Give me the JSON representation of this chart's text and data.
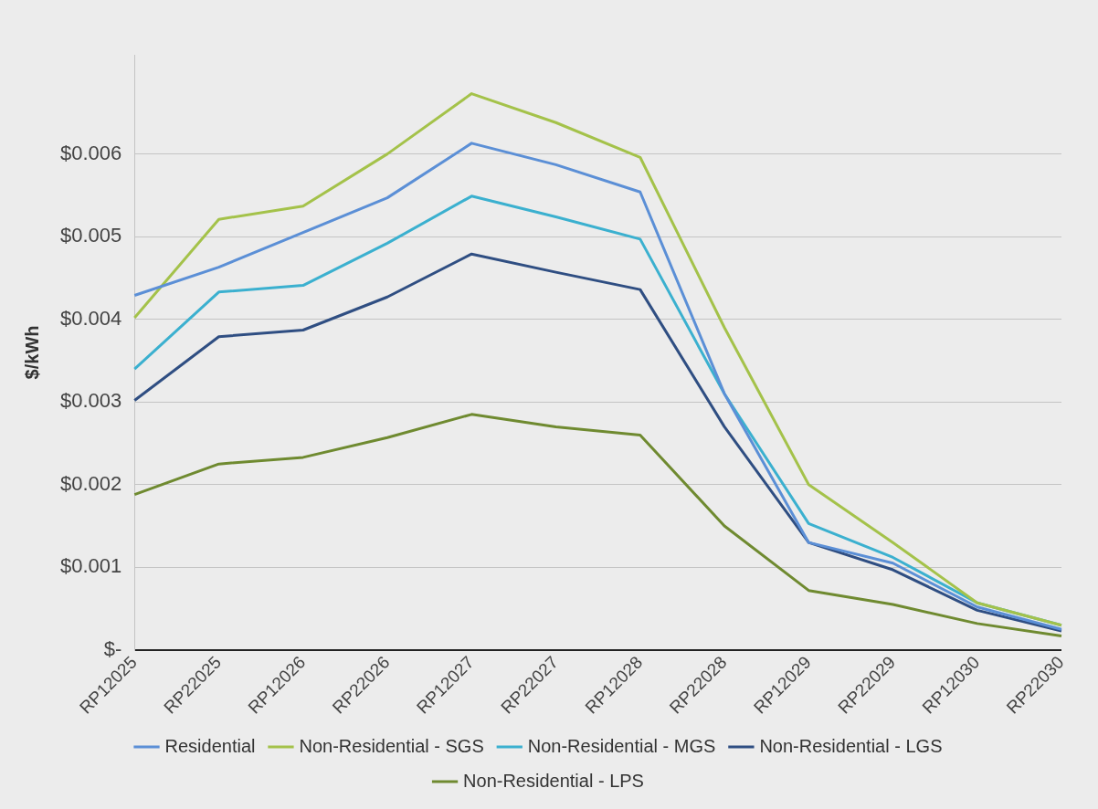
{
  "chart_data": {
    "type": "line",
    "ylabel": "$/kWh",
    "categories": [
      "RP12025",
      "RP22025",
      "RP12026",
      "RP22026",
      "RP12027",
      "RP22027",
      "RP12028",
      "RP22028",
      "RP12029",
      "RP22029",
      "RP12030",
      "RP22030"
    ],
    "series": [
      {
        "name": "Residential",
        "color": "#5b8fd6",
        "values": [
          0.00429,
          0.00463,
          0.00505,
          0.00547,
          0.00613,
          0.00587,
          0.00554,
          0.0031,
          0.0013,
          0.00105,
          0.00052,
          0.00025
        ]
      },
      {
        "name": "Non-Residential - SGS",
        "color": "#a4c24a",
        "values": [
          0.00402,
          0.00521,
          0.00537,
          0.006,
          0.00673,
          0.00638,
          0.00596,
          0.0039,
          0.002,
          0.0013,
          0.00057,
          0.0003
        ]
      },
      {
        "name": "Non-Residential - MGS",
        "color": "#3bb0cf",
        "values": [
          0.0034,
          0.00433,
          0.00441,
          0.00492,
          0.00549,
          0.00524,
          0.00497,
          0.0031,
          0.00153,
          0.00112,
          0.00057,
          0.0003
        ]
      },
      {
        "name": "Non-Residential - LGS",
        "color": "#2f4e82",
        "values": [
          0.00302,
          0.00379,
          0.00387,
          0.00427,
          0.00479,
          0.00457,
          0.00436,
          0.0027,
          0.0013,
          0.00097,
          0.00048,
          0.00023
        ]
      },
      {
        "name": "Non-Residential - LPS",
        "color": "#6f8a30",
        "values": [
          0.00188,
          0.00225,
          0.00233,
          0.00257,
          0.00285,
          0.0027,
          0.0026,
          0.0015,
          0.00072,
          0.00055,
          0.00032,
          0.00017
        ]
      }
    ],
    "ylim": [
      0,
      0.0072
    ],
    "yticks": [
      {
        "value": 0,
        "label": "$-"
      },
      {
        "value": 0.001,
        "label": "$0.001"
      },
      {
        "value": 0.002,
        "label": "$0.002"
      },
      {
        "value": 0.003,
        "label": "$0.003"
      },
      {
        "value": 0.004,
        "label": "$0.004"
      },
      {
        "value": 0.005,
        "label": "$0.005"
      },
      {
        "value": 0.006,
        "label": "$0.006"
      }
    ],
    "grid": "y",
    "legend": "bottom",
    "marker": "none",
    "line_style": "solid"
  }
}
